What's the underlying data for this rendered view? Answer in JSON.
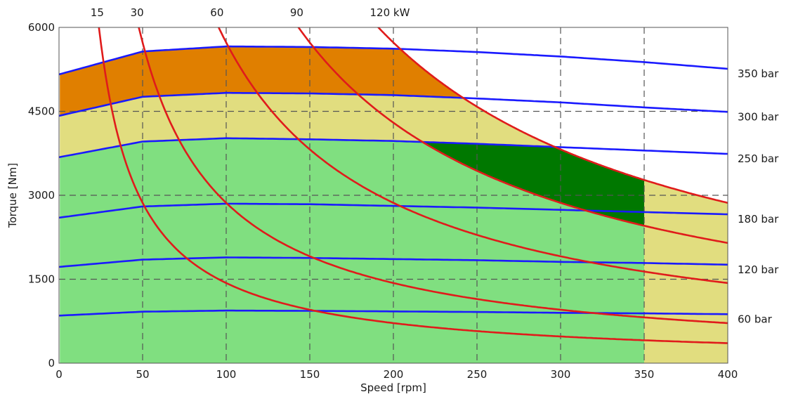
{
  "chart_data": {
    "type": "line",
    "xlabel": "Speed [rpm]",
    "ylabel": "Torque [Nm]",
    "xlim": [
      0,
      400
    ],
    "ylim": [
      0,
      6000
    ],
    "x_ticks": [
      0,
      50,
      100,
      150,
      200,
      250,
      300,
      350,
      400
    ],
    "y_ticks": [
      0,
      1500,
      3000,
      4500,
      6000
    ],
    "grid": "dashed",
    "pressure_series": [
      {
        "name": "350 bar",
        "color": "#1a1aff",
        "x": [
          0,
          50,
          100,
          150,
          200,
          250,
          300,
          350,
          400
        ],
        "values": [
          5160,
          5570,
          5660,
          5650,
          5620,
          5560,
          5480,
          5380,
          5260
        ]
      },
      {
        "name": "300 bar",
        "color": "#1a1aff",
        "x": [
          0,
          50,
          100,
          150,
          200,
          250,
          300,
          350,
          400
        ],
        "values": [
          4420,
          4760,
          4830,
          4820,
          4790,
          4730,
          4660,
          4570,
          4490
        ]
      },
      {
        "name": "250 bar",
        "color": "#1a1aff",
        "x": [
          0,
          50,
          100,
          150,
          200,
          250,
          300,
          350,
          400
        ],
        "values": [
          3680,
          3960,
          4020,
          4000,
          3970,
          3920,
          3860,
          3800,
          3740
        ]
      },
      {
        "name": "180 bar",
        "color": "#1a1aff",
        "x": [
          0,
          50,
          100,
          150,
          200,
          250,
          300,
          350,
          400
        ],
        "values": [
          2600,
          2800,
          2850,
          2840,
          2810,
          2780,
          2740,
          2700,
          2660
        ]
      },
      {
        "name": "120 bar",
        "color": "#1a1aff",
        "x": [
          0,
          50,
          100,
          150,
          200,
          250,
          300,
          350,
          400
        ],
        "values": [
          1720,
          1850,
          1890,
          1880,
          1860,
          1840,
          1810,
          1790,
          1760
        ]
      },
      {
        "name": "60 bar",
        "color": "#1a1aff",
        "x": [
          0,
          50,
          100,
          150,
          200,
          250,
          300,
          350,
          400
        ],
        "values": [
          850,
          920,
          940,
          935,
          925,
          915,
          900,
          890,
          875
        ]
      }
    ],
    "power_series": [
      {
        "name": "15",
        "kw": 15,
        "color": "#e01b1b"
      },
      {
        "name": "30",
        "kw": 30,
        "color": "#e01b1b"
      },
      {
        "name": "60",
        "kw": 60,
        "color": "#e01b1b"
      },
      {
        "name": "90",
        "kw": 90,
        "color": "#e01b1b"
      },
      {
        "name": "120 kW",
        "kw": 120,
        "color": "#e01b1b"
      }
    ],
    "regions": [
      {
        "name": "orange",
        "color": "#e07f00",
        "between": [
          "300 bar",
          "350 bar"
        ],
        "max_power_kw": 120,
        "x_from": 0,
        "x_to": 400
      },
      {
        "name": "yellow",
        "color": "#e1dd7f",
        "between": [
          "250 bar",
          "300 bar"
        ],
        "max_power_kw": 120,
        "x_from": 0,
        "x_to": 400
      },
      {
        "name": "yellow-high-speed",
        "color": "#e1dd7f",
        "between": [
          "0",
          "250 bar"
        ],
        "max_power_kw": 120,
        "x_from": 350,
        "x_to": 400
      },
      {
        "name": "light-green",
        "color": "#80df80",
        "between": [
          "0",
          "250 bar"
        ],
        "max_power_kw": 120,
        "x_from": 0,
        "x_to": 350
      },
      {
        "name": "dark-green",
        "color": "#007800",
        "between": [
          "0",
          "250 bar"
        ],
        "min_power_kw": 90,
        "max_power_kw": 120,
        "x_from": 0,
        "x_to": 350
      }
    ],
    "colors": {
      "pressure": "#1a1aff",
      "power": "#e01b1b",
      "grid": "#555555",
      "frame": "#555555"
    }
  }
}
